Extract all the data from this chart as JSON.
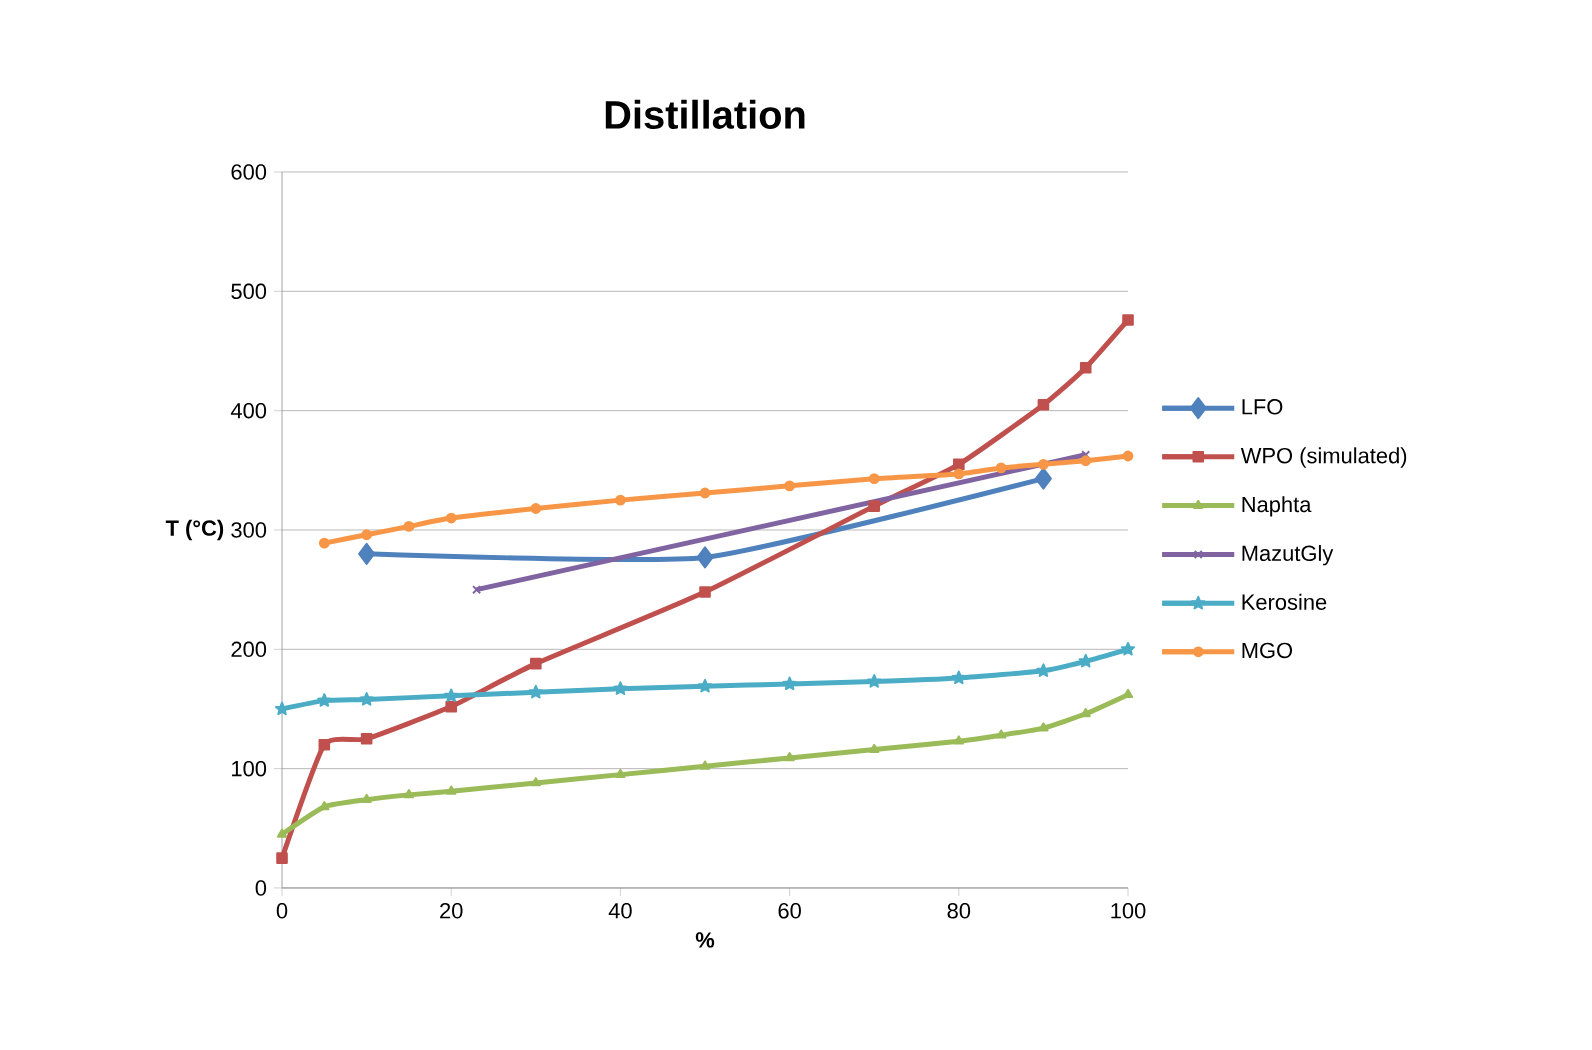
{
  "chart_data": {
    "type": "line",
    "title": "Distillation",
    "xlabel": "%",
    "ylabel": "T (°C)",
    "xlim": [
      0,
      100
    ],
    "xticks": [
      0,
      20,
      40,
      60,
      80,
      100
    ],
    "ylim": [
      0,
      600
    ],
    "yticks": [
      0,
      100,
      200,
      300,
      400,
      500,
      600
    ],
    "grid": "y",
    "legend": "right",
    "series": [
      {
        "name": "LFO",
        "color": "#4f81bd",
        "marker": "diamond",
        "x": [
          10,
          50,
          90
        ],
        "values": [
          280,
          277,
          343
        ]
      },
      {
        "name": "WPO (simulated)",
        "color": "#c0504d",
        "marker": "square",
        "x": [
          0,
          5,
          10,
          20,
          30,
          50,
          70,
          80,
          90,
          95,
          100
        ],
        "values": [
          25,
          120,
          125,
          152,
          188,
          248,
          320,
          355,
          405,
          436,
          476
        ]
      },
      {
        "name": "Naphta",
        "color": "#9bbb59",
        "marker": "triangle",
        "x": [
          0,
          5,
          10,
          15,
          20,
          30,
          40,
          50,
          60,
          70,
          80,
          85,
          90,
          95,
          100
        ],
        "values": [
          45,
          68,
          74,
          78,
          81,
          88,
          95,
          102,
          109,
          116,
          123,
          128,
          134,
          146,
          162
        ]
      },
      {
        "name": "MazutGly",
        "color": "#8064a2",
        "marker": "cross",
        "x": [
          23,
          95
        ],
        "values": [
          250,
          363
        ]
      },
      {
        "name": "Kerosine",
        "color": "#4bacc6",
        "marker": "star",
        "x": [
          0,
          5,
          10,
          20,
          30,
          40,
          50,
          60,
          70,
          80,
          90,
          95,
          100
        ],
        "values": [
          150,
          157,
          158,
          161,
          164,
          167,
          169,
          171,
          173,
          176,
          182,
          190,
          200
        ]
      },
      {
        "name": "MGO",
        "color": "#f79646",
        "marker": "circle",
        "x": [
          5,
          10,
          15,
          20,
          30,
          40,
          50,
          60,
          70,
          80,
          85,
          90,
          95,
          100
        ],
        "values": [
          289,
          296,
          303,
          310,
          318,
          325,
          331,
          337,
          343,
          347,
          352,
          355,
          358,
          362
        ]
      }
    ]
  }
}
